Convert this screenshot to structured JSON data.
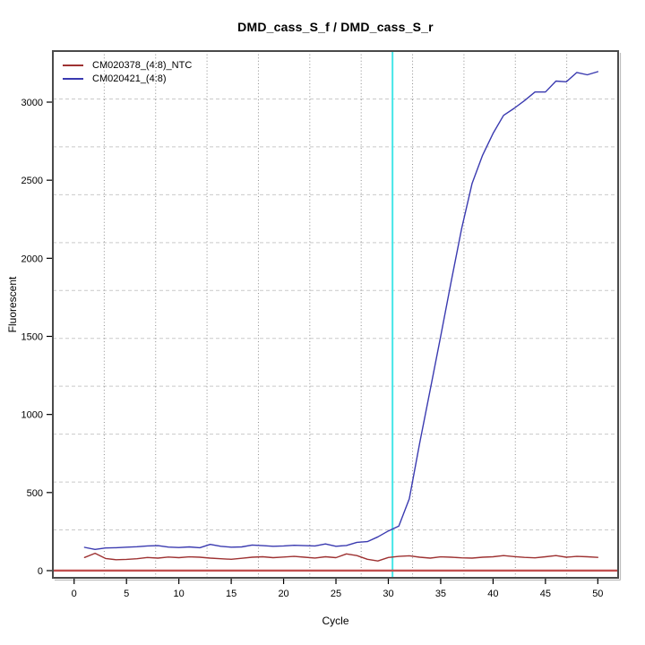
{
  "window": {
    "background": "#ffffff"
  },
  "chart_data": {
    "type": "line",
    "title": "DMD_cass_S_f / DMD_cass_S_r",
    "xlabel": "Cycle",
    "ylabel": "Fluorescent",
    "x_ticks": [
      0,
      5,
      10,
      15,
      20,
      25,
      30,
      35,
      40,
      45,
      50
    ],
    "y_ticks": [
      0,
      500,
      1000,
      1500,
      2000,
      2500,
      3000
    ],
    "xlim": [
      -2.03,
      51.94
    ],
    "ylim": [
      -46,
      3327
    ],
    "grid": {
      "nx": 11,
      "ny": 11,
      "v_style": "dotted",
      "h_style": "dashed",
      "v_color": "#8c8c8c",
      "h_color": "#c9c9c9"
    },
    "legend_position": "top-left",
    "ct_line": {
      "x": 30.4,
      "color": "#45e6e8"
    },
    "threshold_line": {
      "y": 0,
      "color": "#c24f4f"
    },
    "x": [
      1,
      2,
      3,
      4,
      5,
      6,
      7,
      8,
      9,
      10,
      11,
      12,
      13,
      14,
      15,
      16,
      17,
      18,
      19,
      20,
      21,
      22,
      23,
      24,
      25,
      26,
      27,
      28,
      29,
      30,
      31,
      32,
      33,
      34,
      35,
      36,
      37,
      38,
      39,
      40,
      41,
      42,
      43,
      44,
      45,
      46,
      47,
      48,
      49,
      50
    ],
    "series": [
      {
        "name": "CM020378_(4:8)_NTC",
        "color": "#9e3232",
        "values": [
          84,
          111,
          78,
          70,
          72,
          76,
          84,
          80,
          87,
          83,
          88,
          86,
          80,
          76,
          73,
          79,
          86,
          89,
          83,
          87,
          91,
          86,
          81,
          89,
          83,
          107,
          96,
          73,
          62,
          84,
          91,
          95,
          86,
          80,
          88,
          86,
          82,
          80,
          86,
          89,
          96,
          90,
          85,
          82,
          89,
          96,
          86,
          91,
          89,
          85
        ]
      },
      {
        "name": "CM020421_(4:8)",
        "color": "#3a3ab0",
        "values": [
          149,
          136,
          145,
          147,
          150,
          153,
          158,
          160,
          151,
          148,
          152,
          147,
          168,
          156,
          150,
          152,
          164,
          160,
          156,
          158,
          162,
          160,
          158,
          171,
          156,
          161,
          181,
          186,
          216,
          254,
          285,
          460,
          820,
          1160,
          1500,
          1850,
          2190,
          2480,
          2660,
          2800,
          2915,
          2960,
          3010,
          3065,
          3065,
          3135,
          3130,
          3190,
          3175,
          3195
        ]
      }
    ]
  }
}
